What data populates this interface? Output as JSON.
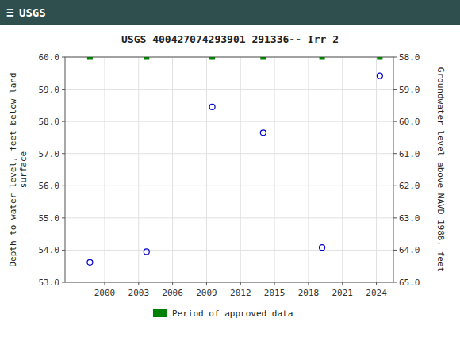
{
  "chart_data": {
    "type": "scatter",
    "title": "USGS 400427074293901 291336-- Irr 2",
    "annotations": [
      "≡",
      "USGS"
    ],
    "ylabel": "Depth to water level, feet below land\nsurface",
    "y2label": "Groundwater level above NAVD 1988, feet",
    "series": [
      {
        "x": [
          1998.7,
          2003.7,
          2009.5,
          2014.0,
          2019.2,
          2024.3
        ],
        "values": [
          53.62,
          53.95,
          58.45,
          57.65,
          54.08,
          59.42
        ],
        "color": "#0000cc",
        "marker": "circle"
      },
      {
        "name": "Period of approved data",
        "x": [
          1998.7,
          2003.7,
          2009.5,
          2014.0,
          2019.2,
          2024.3
        ],
        "values": [
          60.0,
          60.0,
          60.0,
          60.0,
          60.0,
          60.0
        ],
        "color": "#008000",
        "marker": "square"
      }
    ],
    "xlim": [
      1996.5,
      2025.5
    ],
    "xticks": [
      2000,
      2003,
      2006,
      2009,
      2012,
      2015,
      2018,
      2021,
      2024
    ],
    "ylim": [
      53.0,
      60.0
    ],
    "yticks": [
      {
        "value": 53.0,
        "label": "53.0"
      },
      {
        "value": 54.0,
        "label": "54.0"
      },
      {
        "value": 55.0,
        "label": "55.0"
      },
      {
        "value": 56.0,
        "label": "56.0"
      },
      {
        "value": 57.0,
        "label": "57.0"
      },
      {
        "value": 58.0,
        "label": "58.0"
      },
      {
        "value": 59.0,
        "label": "59.0"
      },
      {
        "value": 60.0,
        "label": "60.0"
      }
    ],
    "y2lim": [
      65.0,
      58.0
    ],
    "y2ticks": [
      {
        "value": 58.0,
        "label": "58.0"
      },
      {
        "value": 59.0,
        "label": "59.0"
      },
      {
        "value": 60.0,
        "label": "60.0"
      },
      {
        "value": 61.0,
        "label": "61.0"
      },
      {
        "value": 62.0,
        "label": "62.0"
      },
      {
        "value": 63.0,
        "label": "63.0"
      },
      {
        "value": 64.0,
        "label": "64.0"
      },
      {
        "value": 65.0,
        "label": "65.0"
      }
    ],
    "grid": true,
    "legend": "bottom"
  }
}
